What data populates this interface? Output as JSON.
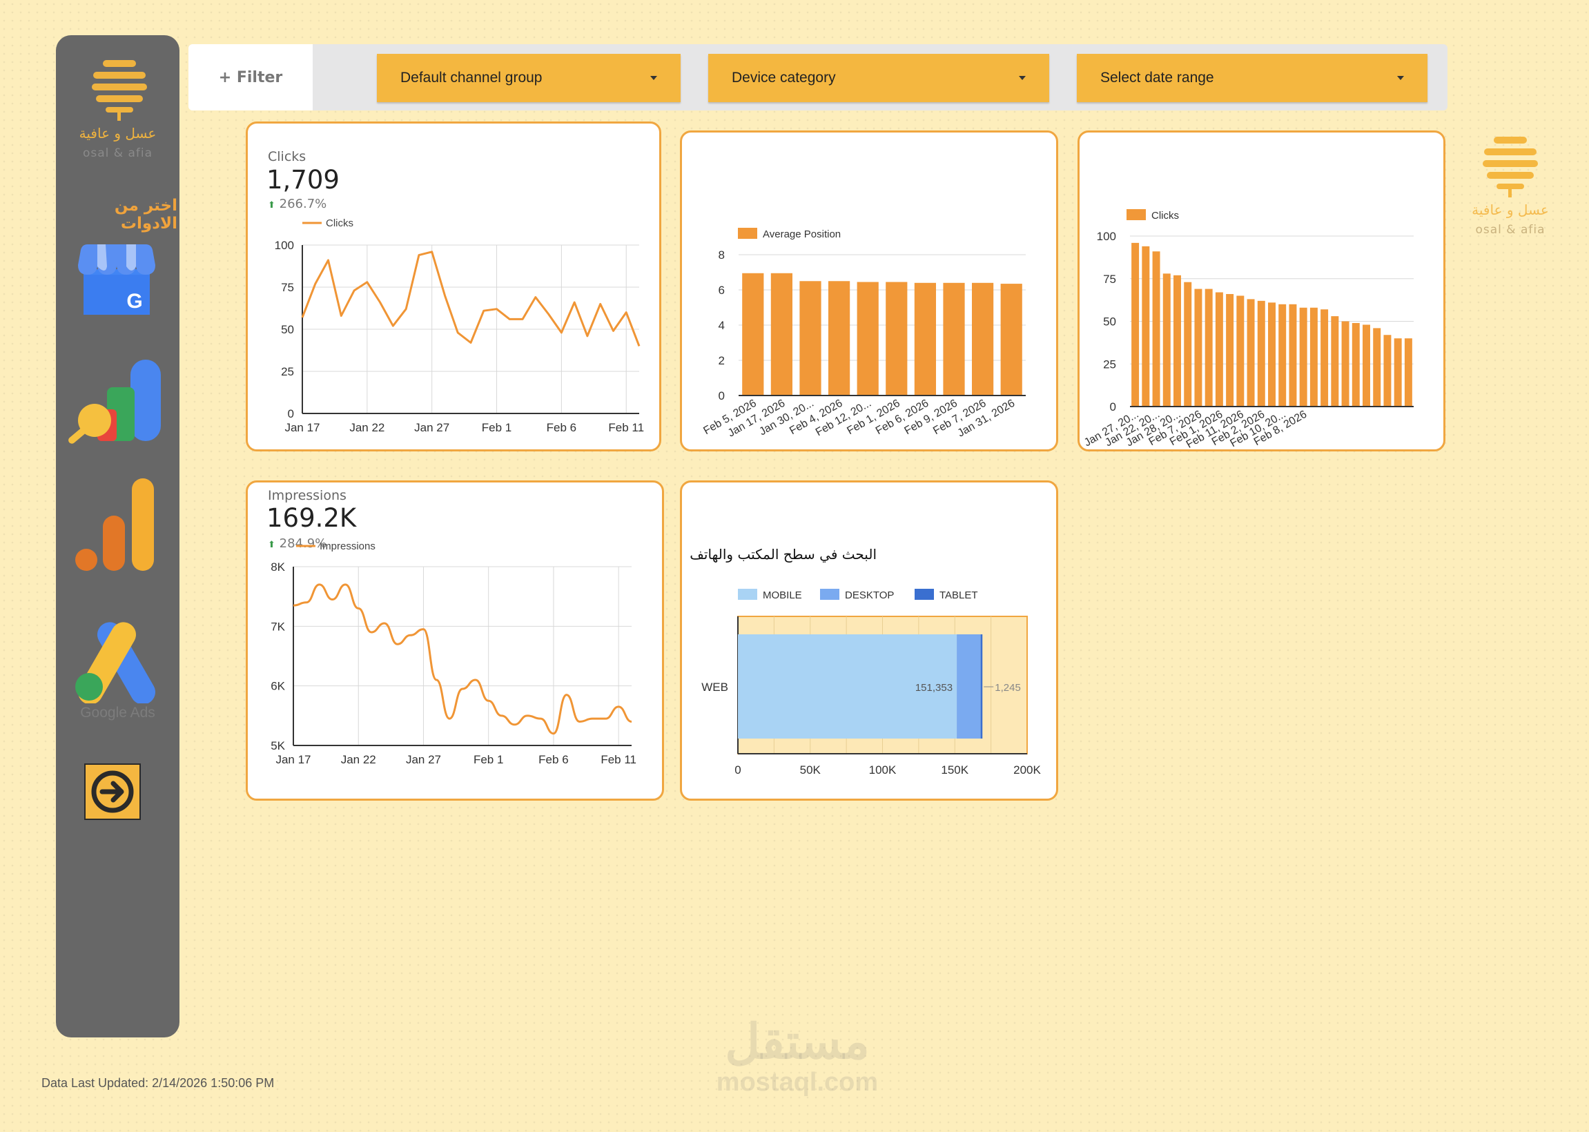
{
  "brand": {
    "name_ar": "عسل و عافية",
    "name_en": "osal & afia"
  },
  "sidebar": {
    "heading": "اختر من الادوات",
    "tools": [
      {
        "name": "google-business-profile",
        "letter": "G"
      },
      {
        "name": "google-analytics"
      },
      {
        "name": "google-analytics-bars"
      },
      {
        "name": "google-ads",
        "label": "Google Ads"
      },
      {
        "name": "next-arrow"
      }
    ]
  },
  "filterbar": {
    "filter_label": "+ Filter",
    "dropdowns": [
      {
        "label": "Default channel group"
      },
      {
        "label": "Device category"
      },
      {
        "label": "Select date range"
      }
    ]
  },
  "colors": {
    "accent": "#f0a640",
    "bar": "#f19838",
    "line": "#f09535",
    "background": "#fdeebc",
    "sidebar": "#676767",
    "mobile": "#a9d3f4",
    "desktop": "#7aaaf0",
    "tablet": "#3a6fd0"
  },
  "scorecards": {
    "clicks": {
      "title": "Clicks",
      "value": "1,709",
      "change": "266.7%"
    },
    "impressions": {
      "title": "Impressions",
      "value": "169.2K",
      "change": "284.9%"
    }
  },
  "chart_data": [
    {
      "type": "line",
      "legend": [
        "Clicks"
      ],
      "ylim": [
        0,
        100
      ],
      "yticks": [
        "0",
        "25",
        "50",
        "75",
        "100"
      ],
      "xticks": [
        "Jan 17",
        "Jan 22",
        "Jan 27",
        "Feb 1",
        "Feb 6",
        "Feb 11"
      ],
      "series": [
        {
          "name": "Clicks",
          "values": [
            57,
            77,
            91,
            58,
            73,
            78,
            66,
            52,
            62,
            94,
            96,
            70,
            48,
            42,
            61,
            62,
            56,
            56,
            69,
            59,
            48,
            66,
            46,
            65,
            49,
            60,
            40
          ]
        }
      ]
    },
    {
      "type": "line",
      "legend": [
        "Impressions"
      ],
      "ylim": [
        5000,
        8000
      ],
      "yticks": [
        "5K",
        "6K",
        "7K",
        "8K"
      ],
      "xticks": [
        "Jan 17",
        "Jan 22",
        "Jan 27",
        "Feb 1",
        "Feb 6",
        "Feb 11"
      ],
      "series": [
        {
          "name": "Impressions",
          "values": [
            7350,
            7400,
            7700,
            7450,
            7700,
            7300,
            6900,
            7050,
            6700,
            6850,
            6950,
            6100,
            5450,
            5950,
            6100,
            5750,
            5500,
            5350,
            5500,
            5450,
            5200,
            5850,
            5400,
            5450,
            5450,
            5650,
            5400
          ]
        }
      ]
    },
    {
      "type": "bar",
      "legend": [
        "Average Position"
      ],
      "ylim": [
        0,
        8
      ],
      "yticks": [
        "0",
        "2",
        "4",
        "6",
        "8"
      ],
      "categories": [
        "Feb 5, 2026",
        "Jan 17, 2026",
        "Jan 30, 20...",
        "Feb 4, 2026",
        "Feb 12, 20...",
        "Feb 1, 2026",
        "Feb 6, 2026",
        "Feb 9, 2026",
        "Feb 7, 2026",
        "Jan 31, 2026"
      ],
      "values": [
        6.95,
        6.95,
        6.5,
        6.5,
        6.45,
        6.45,
        6.4,
        6.4,
        6.4,
        6.35
      ]
    },
    {
      "type": "bar",
      "legend": [
        "Clicks"
      ],
      "ylim": [
        0,
        100
      ],
      "yticks": [
        "0",
        "25",
        "50",
        "75",
        "100"
      ],
      "categories": [
        "Jan 27, 20...",
        "",
        "Jan 22, 20...",
        "",
        "Jan 28, 20...",
        "",
        "Feb 7, 2026",
        "",
        "Feb 1, 2026",
        "",
        "Feb 11, 2026",
        "",
        "Feb 2, 2026",
        "",
        "Feb 10, 20...",
        "",
        "Feb 8, 2026",
        "",
        "",
        "",
        "",
        "",
        "",
        "",
        "",
        "",
        ""
      ],
      "values": [
        96,
        94,
        91,
        78,
        77,
        73,
        69,
        69,
        67,
        66,
        65,
        63,
        62,
        61,
        60,
        60,
        58,
        58,
        57,
        53,
        50,
        49,
        48,
        46,
        42,
        40,
        40
      ]
    },
    {
      "type": "bar",
      "title": "البحث في سطح المكتب والهاتف",
      "orientation": "horizontal",
      "legend": [
        "MOBILE",
        "DESKTOP",
        "TABLET"
      ],
      "categories": [
        "WEB"
      ],
      "series": [
        {
          "name": "MOBILE",
          "values": [
            151353
          ],
          "label": "151,353"
        },
        {
          "name": "DESKTOP",
          "values": [
            16500
          ]
        },
        {
          "name": "TABLET",
          "values": [
            1245
          ],
          "label": "1,245"
        }
      ],
      "xlim": [
        0,
        200000
      ],
      "xticks": [
        "0",
        "50K",
        "100K",
        "150K",
        "200K"
      ]
    }
  ],
  "footer": {
    "updated": "Data Last Updated: 2/14/2026 1:50:06 PM",
    "watermark_ar": "مستقل",
    "watermark_en": "mostaql.com"
  }
}
